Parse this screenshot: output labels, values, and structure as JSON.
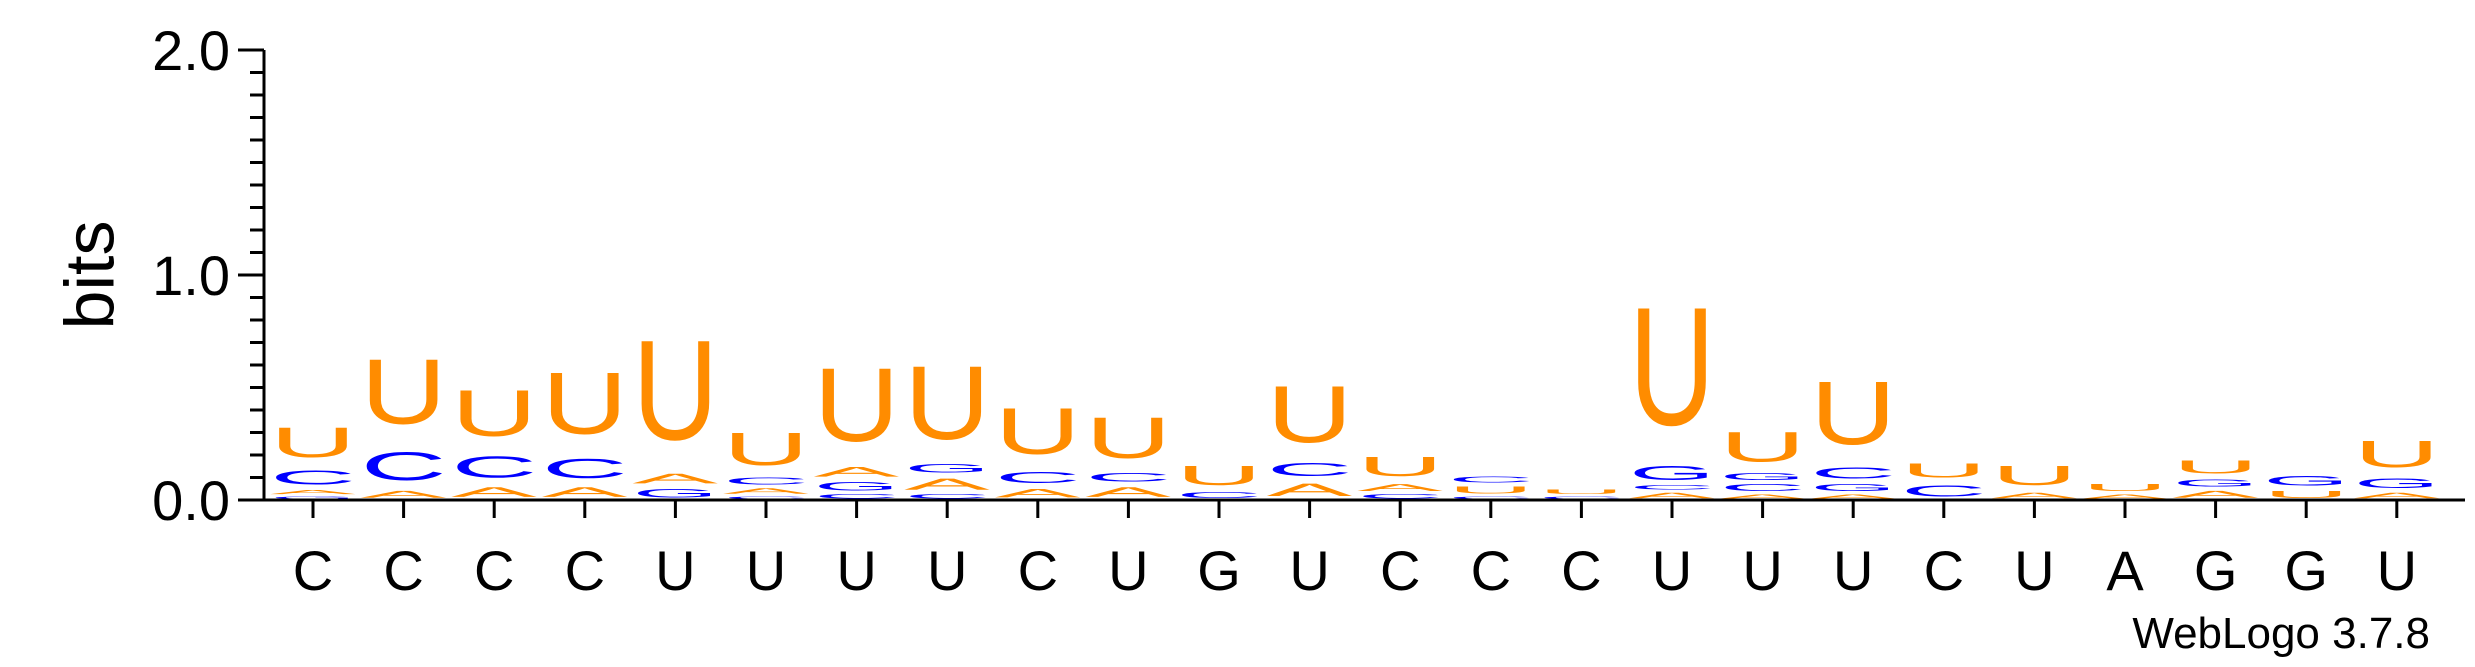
{
  "chart_data": {
    "type": "sequence-logo",
    "ylabel": "bits",
    "ylim": [
      0,
      2.0
    ],
    "yticks": [
      "0.0",
      "1.0",
      "2.0"
    ],
    "credit": "WebLogo 3.7.8",
    "colors": {
      "U": "#ff8c00",
      "C": "#0000ff",
      "G": "#0000ff",
      "A": "#ff8c00"
    },
    "positions": [
      {
        "label": "C",
        "stack": [
          {
            "letter": "G",
            "height": 0.02
          },
          {
            "letter": "A",
            "height": 0.03
          },
          {
            "letter": "C",
            "height": 0.1
          },
          {
            "letter": "U",
            "height": 0.21
          }
        ]
      },
      {
        "label": "C",
        "stack": [
          {
            "letter": "A",
            "height": 0.05
          },
          {
            "letter": "C",
            "height": 0.2
          },
          {
            "letter": "U",
            "height": 0.46
          }
        ]
      },
      {
        "label": "C",
        "stack": [
          {
            "letter": "A",
            "height": 0.07
          },
          {
            "letter": "C",
            "height": 0.15
          },
          {
            "letter": "U",
            "height": 0.33
          }
        ]
      },
      {
        "label": "C",
        "stack": [
          {
            "letter": "A",
            "height": 0.07
          },
          {
            "letter": "C",
            "height": 0.14
          },
          {
            "letter": "U",
            "height": 0.44
          }
        ]
      },
      {
        "label": "U",
        "stack": [
          {
            "letter": "G",
            "height": 0.06
          },
          {
            "letter": "A",
            "height": 0.07
          },
          {
            "letter": "U",
            "height": 0.71
          }
        ]
      },
      {
        "label": "U",
        "stack": [
          {
            "letter": "C",
            "height": 0.02
          },
          {
            "letter": "A",
            "height": 0.04
          },
          {
            "letter": "C",
            "height": 0.05
          },
          {
            "letter": "U",
            "height": 0.23
          }
        ]
      },
      {
        "label": "U",
        "stack": [
          {
            "letter": "C",
            "height": 0.03
          },
          {
            "letter": "G",
            "height": 0.06
          },
          {
            "letter": "A",
            "height": 0.07
          },
          {
            "letter": "U",
            "height": 0.52
          }
        ]
      },
      {
        "label": "U",
        "stack": [
          {
            "letter": "C",
            "height": 0.03
          },
          {
            "letter": "A",
            "height": 0.08
          },
          {
            "letter": "G",
            "height": 0.06
          },
          {
            "letter": "U",
            "height": 0.52
          }
        ]
      },
      {
        "label": "C",
        "stack": [
          {
            "letter": "A",
            "height": 0.06
          },
          {
            "letter": "C",
            "height": 0.08
          },
          {
            "letter": "U",
            "height": 0.33
          }
        ]
      },
      {
        "label": "U",
        "stack": [
          {
            "letter": "A",
            "height": 0.07
          },
          {
            "letter": "C",
            "height": 0.06
          },
          {
            "letter": "U",
            "height": 0.29
          }
        ]
      },
      {
        "label": "G",
        "stack": [
          {
            "letter": "C",
            "height": 0.04
          },
          {
            "letter": "U",
            "height": 0.14
          }
        ]
      },
      {
        "label": "U",
        "stack": [
          {
            "letter": "A",
            "height": 0.09
          },
          {
            "letter": "C",
            "height": 0.09
          },
          {
            "letter": "U",
            "height": 0.4
          }
        ]
      },
      {
        "label": "C",
        "stack": [
          {
            "letter": "C",
            "height": 0.03
          },
          {
            "letter": "A",
            "height": 0.05
          },
          {
            "letter": "U",
            "height": 0.14
          }
        ]
      },
      {
        "label": "C",
        "stack": [
          {
            "letter": "C",
            "height": 0.02
          },
          {
            "letter": "U",
            "height": 0.05
          },
          {
            "letter": "C",
            "height": 0.04
          }
        ]
      },
      {
        "label": "C",
        "stack": [
          {
            "letter": "C",
            "height": 0.02
          },
          {
            "letter": "U",
            "height": 0.03
          }
        ]
      },
      {
        "label": "U",
        "stack": [
          {
            "letter": "A",
            "height": 0.04
          },
          {
            "letter": "C",
            "height": 0.03
          },
          {
            "letter": "G",
            "height": 0.1
          },
          {
            "letter": "U",
            "height": 0.84
          }
        ]
      },
      {
        "label": "U",
        "stack": [
          {
            "letter": "A",
            "height": 0.03
          },
          {
            "letter": "C",
            "height": 0.05
          },
          {
            "letter": "G",
            "height": 0.05
          },
          {
            "letter": "U",
            "height": 0.21
          }
        ]
      },
      {
        "label": "U",
        "stack": [
          {
            "letter": "A",
            "height": 0.03
          },
          {
            "letter": "G",
            "height": 0.05
          },
          {
            "letter": "C",
            "height": 0.08
          },
          {
            "letter": "U",
            "height": 0.45
          }
        ]
      },
      {
        "label": "C",
        "stack": [
          {
            "letter": "C",
            "height": 0.08
          },
          {
            "letter": "U",
            "height": 0.1
          }
        ]
      },
      {
        "label": "U",
        "stack": [
          {
            "letter": "A",
            "height": 0.04
          },
          {
            "letter": "U",
            "height": 0.14
          }
        ]
      },
      {
        "label": "A",
        "stack": [
          {
            "letter": "A",
            "height": 0.03
          },
          {
            "letter": "U",
            "height": 0.05
          }
        ]
      },
      {
        "label": "G",
        "stack": [
          {
            "letter": "A",
            "height": 0.05
          },
          {
            "letter": "G",
            "height": 0.05
          },
          {
            "letter": "U",
            "height": 0.09
          }
        ]
      },
      {
        "label": "G",
        "stack": [
          {
            "letter": "U",
            "height": 0.05
          },
          {
            "letter": "G",
            "height": 0.07
          }
        ]
      },
      {
        "label": "U",
        "stack": [
          {
            "letter": "A",
            "height": 0.04
          },
          {
            "letter": "G",
            "height": 0.07
          },
          {
            "letter": "U",
            "height": 0.19
          }
        ]
      }
    ]
  }
}
